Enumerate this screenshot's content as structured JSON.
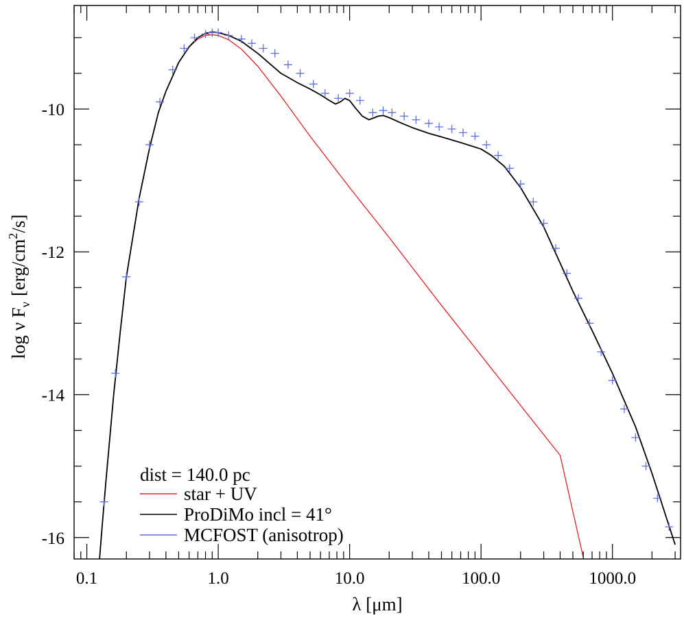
{
  "chart_data": {
    "type": "line",
    "xscale": "log",
    "xlim": [
      0.08,
      3300
    ],
    "ylim": [
      -16.3,
      -8.55
    ],
    "xlabel": "λ [μm]",
    "ylabel": "log ν F",
    "ylabel_sub": "ν",
    "ylabel_unit": "[erg/cm",
    "ylabel_sup": "2",
    "ylabel_unit_end": "/s]",
    "x_ticks": [
      {
        "value": 0.1,
        "label": "0.1"
      },
      {
        "value": 1.0,
        "label": "1.0"
      },
      {
        "value": 10.0,
        "label": "10.0"
      },
      {
        "value": 100.0,
        "label": "100.0"
      },
      {
        "value": 1000.0,
        "label": "1000.0"
      }
    ],
    "y_ticks": [
      {
        "value": -10,
        "label": "-10"
      },
      {
        "value": -12,
        "label": "-12"
      },
      {
        "value": -14,
        "label": "-14"
      },
      {
        "value": -16,
        "label": "-16"
      }
    ],
    "grid": false,
    "legend_position": "bottom-left",
    "annotation": "dist = 140.0 pc",
    "series": [
      {
        "name": "star + UV",
        "color": "#e02020",
        "style": "line",
        "x": [
          0.125,
          0.13,
          0.14,
          0.16,
          0.18,
          0.2,
          0.25,
          0.3,
          0.35,
          0.4,
          0.5,
          0.6,
          0.7,
          0.8,
          0.9,
          1.0,
          1.2,
          1.5,
          2.0,
          3.0,
          5.0,
          10.0,
          20.0,
          50.0,
          100.0,
          200.0,
          400.0,
          600.0
        ],
        "y": [
          -16.3,
          -15.9,
          -15.2,
          -14.0,
          -13.1,
          -12.35,
          -11.25,
          -10.55,
          -10.05,
          -9.75,
          -9.35,
          -9.13,
          -9.02,
          -8.97,
          -8.96,
          -8.97,
          -9.03,
          -9.16,
          -9.4,
          -9.82,
          -10.38,
          -11.1,
          -11.8,
          -12.75,
          -13.45,
          -14.15,
          -14.85,
          -16.28
        ]
      },
      {
        "name": "ProDiMo incl = 41°",
        "color": "#000000",
        "style": "line",
        "x": [
          0.125,
          0.13,
          0.14,
          0.16,
          0.18,
          0.2,
          0.25,
          0.3,
          0.35,
          0.4,
          0.5,
          0.6,
          0.7,
          0.8,
          0.9,
          1.0,
          1.2,
          1.5,
          2.0,
          3.0,
          4.0,
          5.0,
          6.0,
          7.0,
          7.8,
          8.5,
          9.2,
          10.0,
          11.0,
          12.5,
          14.0,
          15.0,
          16.5,
          18.0,
          20.0,
          25.0,
          30.0,
          40.0,
          50.0,
          70.0,
          100.0,
          120.0,
          150.0,
          200.0,
          300.0,
          500.0,
          700.0,
          1000.0,
          1500.0,
          2000.0,
          3000.0
        ],
        "y": [
          -16.3,
          -15.9,
          -15.2,
          -14.0,
          -13.1,
          -12.35,
          -11.25,
          -10.55,
          -10.05,
          -9.75,
          -9.35,
          -9.13,
          -9.0,
          -8.94,
          -8.92,
          -8.93,
          -8.97,
          -9.05,
          -9.22,
          -9.5,
          -9.63,
          -9.72,
          -9.8,
          -9.88,
          -9.93,
          -9.9,
          -9.85,
          -9.88,
          -9.98,
          -10.1,
          -10.15,
          -10.13,
          -10.1,
          -10.09,
          -10.12,
          -10.2,
          -10.26,
          -10.34,
          -10.39,
          -10.47,
          -10.56,
          -10.65,
          -10.8,
          -11.1,
          -11.65,
          -12.55,
          -13.1,
          -13.7,
          -14.45,
          -15.1,
          -16.1
        ]
      },
      {
        "name": "MCFOST (anisotrop)",
        "color": "#5a6fe0",
        "style": "markers",
        "x": [
          0.135,
          0.165,
          0.2,
          0.25,
          0.3,
          0.36,
          0.45,
          0.55,
          0.66,
          0.8,
          0.9,
          1.0,
          1.2,
          1.5,
          1.8,
          2.2,
          2.7,
          3.4,
          4.2,
          5.3,
          6.5,
          8.2,
          10.0,
          12.0,
          15.0,
          18.0,
          21.0,
          26.0,
          32.0,
          40.0,
          48.0,
          60.0,
          73.0,
          90.0,
          110.0,
          135.0,
          165.0,
          200.0,
          250.0,
          300.0,
          370.0,
          450.0,
          550.0,
          670.0,
          820.0,
          1000.0,
          1230.0,
          1500.0,
          1800.0,
          2200.0,
          2700.0
        ],
        "y": [
          -15.5,
          -13.7,
          -12.35,
          -11.3,
          -10.5,
          -9.9,
          -9.45,
          -9.15,
          -9.0,
          -8.95,
          -8.93,
          -8.93,
          -8.97,
          -9.02,
          -9.08,
          -9.15,
          -9.22,
          -9.38,
          -9.5,
          -9.65,
          -9.78,
          -9.85,
          -9.78,
          -9.88,
          -10.05,
          -10.02,
          -10.05,
          -10.1,
          -10.15,
          -10.2,
          -10.25,
          -10.28,
          -10.33,
          -10.38,
          -10.5,
          -10.65,
          -10.83,
          -11.05,
          -11.3,
          -11.6,
          -11.95,
          -12.3,
          -12.65,
          -13.0,
          -13.4,
          -13.8,
          -14.2,
          -14.6,
          -15.0,
          -15.45,
          -15.85
        ]
      }
    ]
  }
}
